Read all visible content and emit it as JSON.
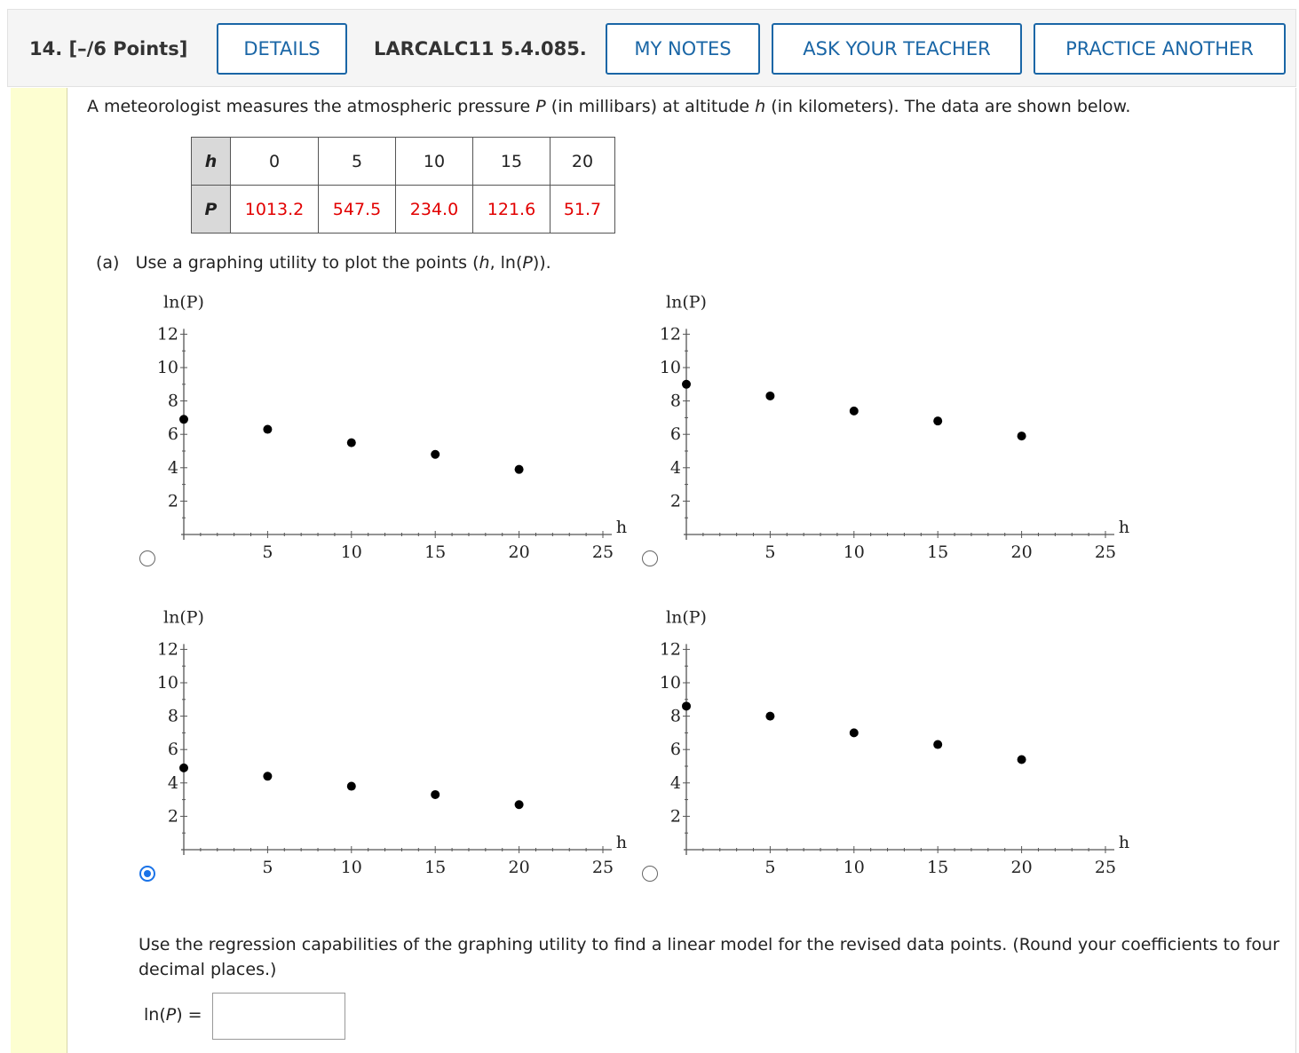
{
  "question": {
    "number": "14.",
    "points": "[–/6 Points]",
    "id": "LARCALC11 5.4.085.",
    "buttons": {
      "details": "DETAILS",
      "my_notes": "MY NOTES",
      "ask_teacher": "ASK YOUR TEACHER",
      "practice": "PRACTICE ANOTHER"
    }
  },
  "intro": {
    "before_P": "A meteorologist measures the atmospheric pressure ",
    "P": "P",
    "middle": " (in millibars) at altitude ",
    "h": "h",
    "after": " (in kilometers). The data are shown below."
  },
  "table": {
    "row1_header": "h",
    "row2_header": "P",
    "h_values": [
      "0",
      "5",
      "10",
      "15",
      "20"
    ],
    "P_values": [
      "1013.2",
      "547.5",
      "234.0",
      "121.6",
      "51.7"
    ],
    "value_color": "#e20000"
  },
  "part_a": {
    "label": "(a)",
    "text_before": "Use a graphing utility to plot the points (",
    "h": "h",
    "text_mid": ", ln(",
    "P": "P",
    "text_after": "))."
  },
  "chart_data": [
    {
      "type": "scatter",
      "xlabel": "h",
      "ylabel": "ln(P)",
      "xlim": [
        0,
        25
      ],
      "ylim": [
        0,
        12
      ],
      "xticks": [
        5,
        10,
        15,
        20,
        25
      ],
      "yticks": [
        2,
        4,
        6,
        8,
        10,
        12
      ],
      "x": [
        0,
        5,
        10,
        15,
        20
      ],
      "y": [
        6.9,
        6.3,
        5.5,
        4.8,
        3.9
      ],
      "selected": false
    },
    {
      "type": "scatter",
      "xlabel": "h",
      "ylabel": "ln(P)",
      "xlim": [
        0,
        25
      ],
      "ylim": [
        0,
        12
      ],
      "xticks": [
        5,
        10,
        15,
        20,
        25
      ],
      "yticks": [
        2,
        4,
        6,
        8,
        10,
        12
      ],
      "x": [
        0,
        5,
        10,
        15,
        20
      ],
      "y": [
        9.0,
        8.3,
        7.4,
        6.8,
        5.9
      ],
      "selected": false
    },
    {
      "type": "scatter",
      "xlabel": "h",
      "ylabel": "ln(P)",
      "xlim": [
        0,
        25
      ],
      "ylim": [
        0,
        12
      ],
      "xticks": [
        5,
        10,
        15,
        20,
        25
      ],
      "yticks": [
        2,
        4,
        6,
        8,
        10,
        12
      ],
      "x": [
        0,
        5,
        10,
        15,
        20
      ],
      "y": [
        4.9,
        4.4,
        3.8,
        3.3,
        2.7
      ],
      "selected": true
    },
    {
      "type": "scatter",
      "xlabel": "h",
      "ylabel": "ln(P)",
      "xlim": [
        0,
        25
      ],
      "ylim": [
        0,
        12
      ],
      "xticks": [
        5,
        10,
        15,
        20,
        25
      ],
      "yticks": [
        2,
        4,
        6,
        8,
        10,
        12
      ],
      "x": [
        0,
        5,
        10,
        15,
        20
      ],
      "y": [
        8.6,
        8.0,
        7.0,
        6.3,
        5.4
      ],
      "selected": false
    }
  ],
  "regression": {
    "text": "Use the regression capabilities of the graphing utility to find a linear model for the revised data points. (Round your coefficients to four decimal places.)",
    "label_prefix": "ln(",
    "label_P": "P",
    "label_suffix": ") =",
    "answer_value": ""
  }
}
